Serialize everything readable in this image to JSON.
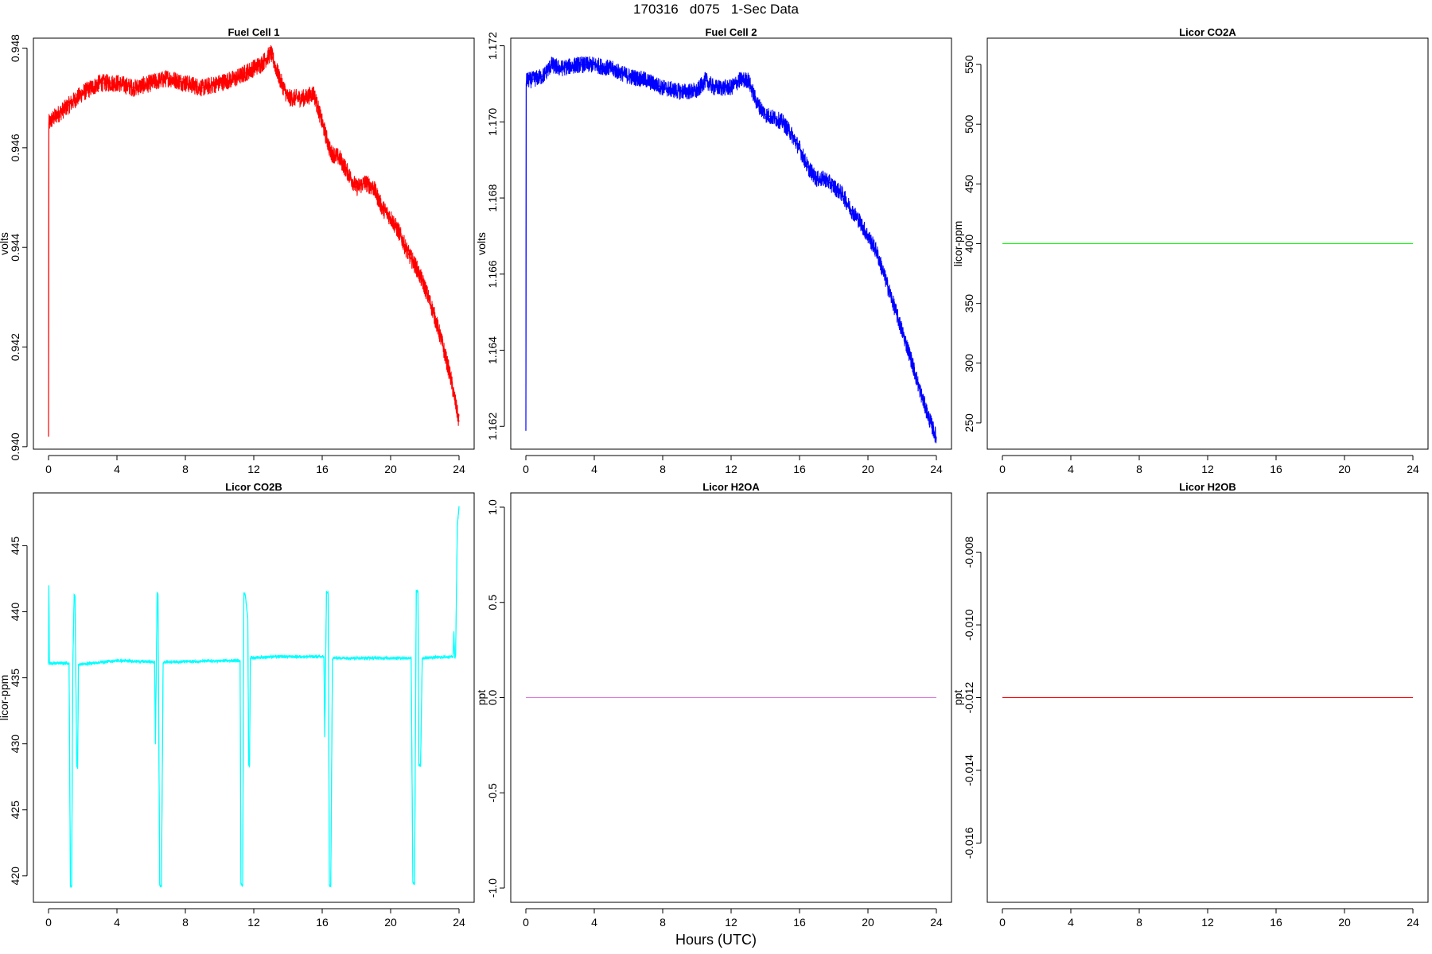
{
  "page_title": "170316   d075   1-Sec Data",
  "shared_xlabel": "Hours (UTC)",
  "chart_data": [
    {
      "type": "line",
      "title": "Fuel Cell 1",
      "ylabel": "volts",
      "xlim": [
        0,
        24
      ],
      "ylim": [
        0.93995,
        0.9482
      ],
      "xticks": [
        0,
        4,
        8,
        12,
        16,
        20,
        24
      ],
      "yticks": [
        0.94,
        0.942,
        0.944,
        0.946,
        0.948
      ],
      "ytick_labels": [
        "0.940",
        "0.942",
        "0.944",
        "0.946",
        "0.948"
      ],
      "color": "#ff0000",
      "noise": 0.00018,
      "series": [
        {
          "x": [
            0,
            0.02,
            0.05,
            0.3,
            1,
            2,
            3,
            4,
            5,
            6,
            7,
            8,
            9,
            10,
            11,
            12,
            12.5,
            13,
            13.5,
            14,
            15,
            15.5,
            16,
            16.5,
            17,
            17.5,
            18,
            18.5,
            19,
            19.5,
            20,
            20.5,
            21,
            21.5,
            22,
            22.5,
            23,
            23.5,
            24
          ],
          "y": [
            0.9402,
            0.9465,
            0.9465,
            0.9466,
            0.9468,
            0.9471,
            0.9473,
            0.9473,
            0.9472,
            0.9473,
            0.9474,
            0.9473,
            0.9472,
            0.9473,
            0.9474,
            0.9476,
            0.9477,
            0.9479,
            0.9474,
            0.947,
            0.947,
            0.9471,
            0.9465,
            0.9459,
            0.9458,
            0.9455,
            0.9452,
            0.9453,
            0.9452,
            0.9448,
            0.9446,
            0.9443,
            0.9439,
            0.9436,
            0.9432,
            0.9427,
            0.9421,
            0.9414,
            0.9405
          ]
        }
      ]
    },
    {
      "type": "line",
      "title": "Fuel Cell 2",
      "ylabel": "volts",
      "xlim": [
        0,
        24
      ],
      "ylim": [
        1.1614,
        1.1722
      ],
      "xticks": [
        0,
        4,
        8,
        12,
        16,
        20,
        24
      ],
      "yticks": [
        1.162,
        1.164,
        1.166,
        1.168,
        1.17,
        1.172
      ],
      "ytick_labels": [
        "1.162",
        "1.164",
        "1.166",
        "1.168",
        "1.170",
        "1.172"
      ],
      "color": "#0000ff",
      "noise": 0.00022,
      "series": [
        {
          "x": [
            0,
            0.02,
            0.05,
            0.3,
            1,
            1.5,
            2,
            3,
            4,
            5,
            6,
            7,
            8,
            9,
            10,
            10.5,
            11,
            12,
            12.5,
            13,
            13.5,
            14,
            15,
            15.5,
            16,
            16.5,
            17,
            17.5,
            18,
            18.5,
            19,
            19.5,
            20,
            20.5,
            21,
            21.5,
            22,
            22.5,
            23,
            23.5,
            24
          ],
          "y": [
            1.1619,
            1.171,
            1.1711,
            1.1711,
            1.1712,
            1.1715,
            1.1714,
            1.1715,
            1.1715,
            1.1714,
            1.1712,
            1.1711,
            1.1709,
            1.1708,
            1.1708,
            1.1711,
            1.1709,
            1.1709,
            1.1711,
            1.1711,
            1.1705,
            1.1702,
            1.17,
            1.1697,
            1.1693,
            1.1688,
            1.1685,
            1.1685,
            1.1683,
            1.1681,
            1.1677,
            1.1674,
            1.167,
            1.1666,
            1.1659,
            1.1652,
            1.1645,
            1.1638,
            1.163,
            1.1623,
            1.1617
          ]
        }
      ]
    },
    {
      "type": "line",
      "title": "Licor CO2A",
      "ylabel": "licor-ppm",
      "xlim": [
        0,
        24
      ],
      "ylim": [
        228,
        572
      ],
      "xticks": [
        0,
        4,
        8,
        12,
        16,
        20,
        24
      ],
      "yticks": [
        250,
        300,
        350,
        400,
        450,
        500,
        550
      ],
      "ytick_labels": [
        "250",
        "300",
        "350",
        "400",
        "450",
        "500",
        "550"
      ],
      "color": "#00ff00",
      "noise": 0,
      "series": [
        {
          "x": [
            0,
            24
          ],
          "y": [
            400,
            400
          ]
        }
      ]
    },
    {
      "type": "line",
      "title": "Licor CO2B",
      "ylabel": "licor-ppm",
      "xlim": [
        0,
        24
      ],
      "ylim": [
        418,
        449
      ],
      "xticks": [
        0,
        4,
        8,
        12,
        16,
        20,
        24
      ],
      "yticks": [
        420,
        425,
        430,
        435,
        440,
        445
      ],
      "ytick_labels": [
        "420",
        "425",
        "430",
        "435",
        "440",
        "445"
      ],
      "color": "#00ffff",
      "noise": 0.12,
      "series": [
        {
          "x": [
            0,
            0.02,
            0.05,
            0.1,
            1.2,
            1.28,
            1.35,
            1.42,
            1.5,
            1.55,
            1.65,
            1.7,
            1.75,
            4,
            6.2,
            6.25,
            6.35,
            6.4,
            6.5,
            6.6,
            6.7,
            6.75,
            11.2,
            11.25,
            11.35,
            11.42,
            11.5,
            11.65,
            11.7,
            11.75,
            11.8,
            11.9,
            11.95,
            12,
            13,
            16.1,
            16.15,
            16.25,
            16.35,
            16.42,
            16.5,
            16.6,
            16.65,
            21.2,
            21.3,
            21.4,
            21.5,
            21.6,
            21.65,
            21.75,
            21.85,
            23.6,
            23.65,
            23.7,
            23.75,
            23.8,
            23.9,
            24
          ],
          "y": [
            436,
            442,
            436.2,
            436.1,
            436.1,
            419.2,
            419.2,
            436,
            441.3,
            441.2,
            428.3,
            428.2,
            436,
            436.3,
            436.2,
            430,
            441.4,
            441.3,
            419.3,
            419.2,
            436.1,
            436.2,
            436.3,
            419.4,
            419.3,
            441.4,
            441.3,
            439.5,
            428.5,
            428.3,
            436.5,
            436.6,
            436.5,
            436.5,
            436.6,
            436.6,
            430.5,
            441.5,
            441.4,
            419.3,
            419.2,
            436.4,
            436.5,
            436.5,
            419.5,
            419.4,
            441.6,
            441.5,
            428.4,
            428.3,
            436.5,
            436.6,
            436.6,
            438.5,
            436.5,
            436.7,
            446.5,
            448
          ]
        }
      ]
    },
    {
      "type": "line",
      "title": "Licor H2OA",
      "ylabel": "ppt",
      "xlim": [
        0,
        24
      ],
      "ylim": [
        -1.075,
        1.075
      ],
      "xticks": [
        0,
        4,
        8,
        12,
        16,
        20,
        24
      ],
      "yticks": [
        -1.0,
        -0.5,
        0.0,
        0.5,
        1.0
      ],
      "ytick_labels": [
        "-1.0",
        "-0.5",
        "0.0",
        "0.5",
        "1.0"
      ],
      "color": "#dd77dd",
      "noise": 0,
      "series": [
        {
          "x": [
            0,
            24
          ],
          "y": [
            0,
            0
          ]
        }
      ]
    },
    {
      "type": "line",
      "title": "Licor H2OB",
      "ylabel": "ppt",
      "xlim": [
        0,
        24
      ],
      "ylim": [
        -0.01763,
        -0.00637
      ],
      "xticks": [
        0,
        4,
        8,
        12,
        16,
        20,
        24
      ],
      "yticks": [
        -0.016,
        -0.014,
        -0.012,
        -0.01,
        -0.008
      ],
      "ytick_labels": [
        "-0.016",
        "-0.014",
        "-0.012",
        "-0.010",
        "-0.008"
      ],
      "color": "#ff0000",
      "noise": 0,
      "series": [
        {
          "x": [
            0,
            24
          ],
          "y": [
            -0.012,
            -0.012
          ]
        }
      ]
    }
  ]
}
